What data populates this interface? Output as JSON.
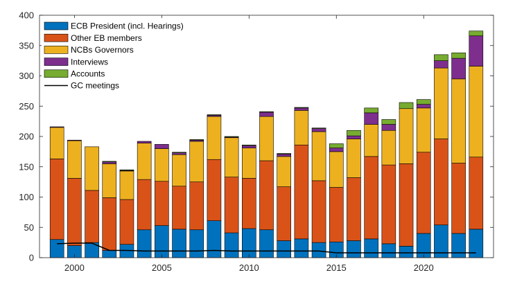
{
  "chart_data": {
    "type": "bar",
    "stacked": true,
    "title": "",
    "xlabel": "",
    "ylabel": "",
    "ylim": [
      0,
      400
    ],
    "yticks": [
      0,
      50,
      100,
      150,
      200,
      250,
      300,
      350,
      400
    ],
    "xlim": [
      1998,
      2024
    ],
    "xticks": [
      2000,
      2005,
      2010,
      2015,
      2020
    ],
    "categories": [
      1999,
      2000,
      2001,
      2002,
      2003,
      2004,
      2005,
      2006,
      2007,
      2008,
      2009,
      2010,
      2011,
      2012,
      2013,
      2014,
      2015,
      2016,
      2017,
      2018,
      2019,
      2020,
      2021,
      2022,
      2023
    ],
    "series": [
      {
        "name": "ECB President (incl. Hearings)",
        "color": "#0072BD",
        "values": [
          30,
          20,
          25,
          12,
          22,
          46,
          53,
          47,
          46,
          61,
          41,
          48,
          46,
          28,
          31,
          25,
          26,
          28,
          31,
          23,
          19,
          40,
          54,
          40,
          47
        ]
      },
      {
        "name": "Other EB members",
        "color": "#D95319",
        "values": [
          133,
          111,
          86,
          87,
          74,
          83,
          73,
          71,
          79,
          101,
          92,
          83,
          114,
          89,
          155,
          102,
          90,
          104,
          136,
          130,
          136,
          134,
          142,
          116,
          119
        ]
      },
      {
        "name": "NCBs Governors",
        "color": "#EDB120",
        "values": [
          52,
          62,
          72,
          56,
          47,
          60,
          54,
          52,
          67,
          71,
          65,
          50,
          73,
          50,
          57,
          81,
          59,
          64,
          53,
          57,
          91,
          73,
          117,
          139,
          150
        ]
      },
      {
        "name": "Interviews",
        "color": "#7E2F8E",
        "values": [
          1,
          1,
          0,
          3,
          1,
          3,
          7,
          3,
          2,
          2,
          1,
          4,
          7,
          4,
          4,
          5,
          6,
          5,
          19,
          10,
          0,
          6,
          12,
          34,
          50
        ]
      },
      {
        "name": "Accounts",
        "color": "#77AC30",
        "values": [
          0,
          0,
          0,
          1,
          1,
          0,
          0,
          1,
          1,
          1,
          1,
          1,
          1,
          1,
          1,
          1,
          7,
          9,
          8,
          8,
          10,
          8,
          10,
          9,
          8
        ]
      }
    ],
    "line": {
      "name": "GC meetings",
      "color": "#000000",
      "values": [
        23,
        24,
        24,
        12,
        12,
        11,
        11,
        11,
        11,
        12,
        11,
        11,
        11,
        11,
        11,
        11,
        8,
        8,
        8,
        8,
        8,
        8,
        8,
        8,
        8
      ]
    },
    "legend": {
      "location": "top-left",
      "entries": [
        "ECB President (incl. Hearings)",
        "Other EB members",
        "NCBs Governors",
        "Interviews",
        "Accounts",
        "GC meetings"
      ]
    }
  }
}
